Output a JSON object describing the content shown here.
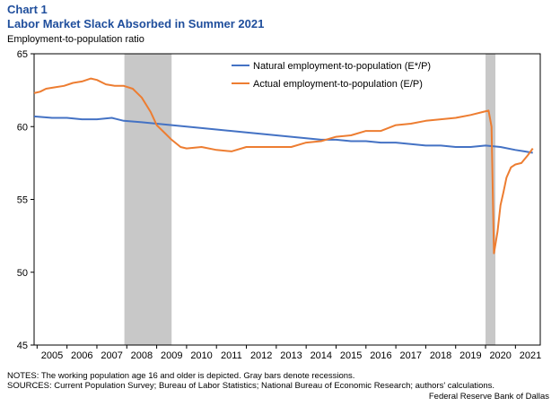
{
  "header": {
    "chart_label": "Chart 1",
    "title": "Labor Market Slack Absorbed in Summer 2021",
    "ylabel": "Employment-to-population  ratio"
  },
  "footer": {
    "notes": "NOTES: The working population age 16 and older is depicted. Gray bars denote recessions.",
    "sources": "SOURCES: Current Population Survey; Bureau of Labor Statistics; National Bureau of Economic Research; authors' calculations.",
    "credit": "Federal Reserve  Bank of Dallas"
  },
  "colors": {
    "natural": "#4472c4",
    "actual": "#ed7d31",
    "recession": "#c8c8c8"
  },
  "chart_data": {
    "type": "line",
    "xlim": [
      2004.9,
      2021.83
    ],
    "ylim": [
      45,
      65
    ],
    "yticks": [
      45,
      50,
      55,
      60,
      65
    ],
    "xticks": [
      2005,
      2006,
      2007,
      2008,
      2009,
      2010,
      2011,
      2012,
      2013,
      2014,
      2015,
      2016,
      2017,
      2018,
      2019,
      2020,
      2021
    ],
    "recessions": [
      [
        2007.92,
        2009.5
      ],
      [
        2020.0,
        2020.33
      ]
    ],
    "legend_position": "top-center",
    "series": [
      {
        "name": "Natural employment-to-population (E*/P)",
        "color": "#4472c4",
        "points": [
          [
            2004.9,
            60.7
          ],
          [
            2005.5,
            60.6
          ],
          [
            2006.0,
            60.6
          ],
          [
            2006.5,
            60.5
          ],
          [
            2007.0,
            60.5
          ],
          [
            2007.5,
            60.6
          ],
          [
            2007.9,
            60.4
          ],
          [
            2008.5,
            60.3
          ],
          [
            2009.0,
            60.2
          ],
          [
            2009.5,
            60.1
          ],
          [
            2010.0,
            60.0
          ],
          [
            2010.5,
            59.9
          ],
          [
            2011.0,
            59.8
          ],
          [
            2011.5,
            59.7
          ],
          [
            2012.0,
            59.6
          ],
          [
            2012.5,
            59.5
          ],
          [
            2013.0,
            59.4
          ],
          [
            2013.5,
            59.3
          ],
          [
            2014.0,
            59.2
          ],
          [
            2014.5,
            59.1
          ],
          [
            2015.0,
            59.1
          ],
          [
            2015.5,
            59.0
          ],
          [
            2016.0,
            59.0
          ],
          [
            2016.5,
            58.9
          ],
          [
            2017.0,
            58.9
          ],
          [
            2017.5,
            58.8
          ],
          [
            2018.0,
            58.7
          ],
          [
            2018.5,
            58.7
          ],
          [
            2019.0,
            58.6
          ],
          [
            2019.5,
            58.6
          ],
          [
            2020.0,
            58.7
          ],
          [
            2020.5,
            58.6
          ],
          [
            2021.0,
            58.4
          ],
          [
            2021.3,
            58.3
          ],
          [
            2021.58,
            58.2
          ]
        ]
      },
      {
        "name": "Actual employment-to-population (E/P)",
        "color": "#ed7d31",
        "points": [
          [
            2004.9,
            62.3
          ],
          [
            2005.1,
            62.4
          ],
          [
            2005.3,
            62.6
          ],
          [
            2005.6,
            62.7
          ],
          [
            2005.9,
            62.8
          ],
          [
            2006.2,
            63.0
          ],
          [
            2006.5,
            63.1
          ],
          [
            2006.8,
            63.3
          ],
          [
            2007.0,
            63.2
          ],
          [
            2007.3,
            62.9
          ],
          [
            2007.6,
            62.8
          ],
          [
            2007.9,
            62.8
          ],
          [
            2008.2,
            62.6
          ],
          [
            2008.5,
            62.0
          ],
          [
            2008.8,
            61.0
          ],
          [
            2009.0,
            60.1
          ],
          [
            2009.3,
            59.5
          ],
          [
            2009.5,
            59.1
          ],
          [
            2009.8,
            58.6
          ],
          [
            2010.0,
            58.5
          ],
          [
            2010.5,
            58.6
          ],
          [
            2011.0,
            58.4
          ],
          [
            2011.5,
            58.3
          ],
          [
            2012.0,
            58.6
          ],
          [
            2012.5,
            58.6
          ],
          [
            2013.0,
            58.6
          ],
          [
            2013.5,
            58.6
          ],
          [
            2014.0,
            58.9
          ],
          [
            2014.5,
            59.0
          ],
          [
            2015.0,
            59.3
          ],
          [
            2015.5,
            59.4
          ],
          [
            2016.0,
            59.7
          ],
          [
            2016.5,
            59.7
          ],
          [
            2017.0,
            60.1
          ],
          [
            2017.5,
            60.2
          ],
          [
            2018.0,
            60.4
          ],
          [
            2018.5,
            60.5
          ],
          [
            2019.0,
            60.6
          ],
          [
            2019.5,
            60.8
          ],
          [
            2019.9,
            61.0
          ],
          [
            2020.1,
            61.1
          ],
          [
            2020.2,
            60.0
          ],
          [
            2020.28,
            51.3
          ],
          [
            2020.4,
            52.8
          ],
          [
            2020.5,
            54.6
          ],
          [
            2020.6,
            55.5
          ],
          [
            2020.7,
            56.5
          ],
          [
            2020.85,
            57.2
          ],
          [
            2021.0,
            57.4
          ],
          [
            2021.2,
            57.5
          ],
          [
            2021.4,
            58.0
          ],
          [
            2021.58,
            58.5
          ]
        ]
      }
    ]
  }
}
